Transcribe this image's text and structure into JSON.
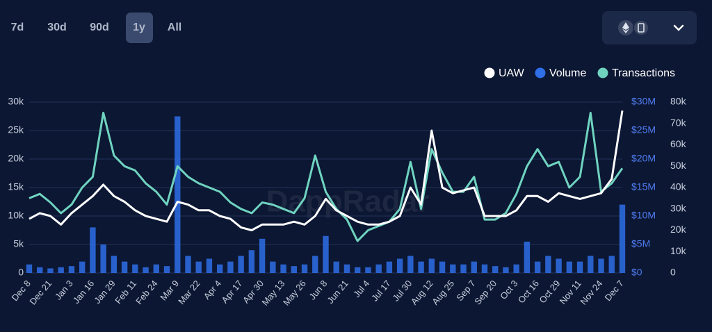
{
  "tabs": [
    "7d",
    "30d",
    "90d",
    "1y",
    "All"
  ],
  "active_tab": 3,
  "chart_data": {
    "type": "line",
    "watermark": "DappRadar",
    "legend": "top-right",
    "categories": [
      "Dec 8",
      null,
      "Dec 21",
      null,
      "Jan 3",
      null,
      "Jan 16",
      null,
      "Jan 29",
      null,
      "Feb 11",
      null,
      "Feb 24",
      null,
      "Mar 9",
      null,
      "Mar 22",
      null,
      "Apr 4",
      null,
      "Apr 17",
      null,
      "Apr 30",
      null,
      "May 13",
      null,
      "May 26",
      null,
      "Jun 8",
      null,
      "Jun 21",
      null,
      "Jul 4",
      null,
      "Jul 17",
      null,
      "Jul 30",
      null,
      "Aug 12",
      null,
      "Aug 25",
      null,
      "Sep 7",
      null,
      "Sep 20",
      null,
      "Oct 3",
      null,
      "Oct 16",
      null,
      "Oct 29",
      null,
      "Nov 11",
      null,
      "Nov 24",
      null,
      "Dec 7"
    ],
    "series": [
      {
        "name": "UAW",
        "color": "#ffffff",
        "axis": "y",
        "type": "line",
        "values": [
          9500,
          10500,
          10000,
          8500,
          10500,
          12000,
          13500,
          15500,
          13500,
          12500,
          11000,
          10000,
          9500,
          9000,
          12500,
          12000,
          11000,
          11000,
          10000,
          9500,
          8000,
          7500,
          8500,
          8500,
          8500,
          9000,
          8500,
          10000,
          13000,
          11000,
          10000,
          9000,
          8500,
          8500,
          9000,
          10000,
          15000,
          12000,
          25000,
          15000,
          14000,
          14500,
          15000,
          10000,
          10000,
          10000,
          11000,
          13500,
          13500,
          12500,
          14000,
          13500,
          13000,
          13500,
          14000,
          16500,
          28500
        ]
      },
      {
        "name": "Volume",
        "color": "#2f6fe8",
        "axis": "y2",
        "type": "bar",
        "values": [
          1500000,
          1000000,
          800000,
          1000000,
          1200000,
          2000000,
          8000000,
          5000000,
          3000000,
          2000000,
          1500000,
          1000000,
          1500000,
          1200000,
          27500000,
          3000000,
          2000000,
          2500000,
          1500000,
          2000000,
          3000000,
          4000000,
          6000000,
          2000000,
          1500000,
          1200000,
          1500000,
          3000000,
          6500000,
          2000000,
          1500000,
          1000000,
          1000000,
          1500000,
          2000000,
          2500000,
          3000000,
          2000000,
          2500000,
          2000000,
          1500000,
          1500000,
          2000000,
          1500000,
          1200000,
          1000000,
          1500000,
          5500000,
          2000000,
          3000000,
          2500000,
          2000000,
          2000000,
          3000000,
          2500000,
          3000000,
          12000000
        ]
      },
      {
        "name": "Transactions",
        "color": "#6fd3c0",
        "axis": "y3",
        "type": "line",
        "values": [
          35000,
          37000,
          33000,
          28000,
          32000,
          40000,
          45000,
          75000,
          55000,
          50000,
          48000,
          42000,
          38000,
          32000,
          50000,
          45000,
          42000,
          40000,
          38000,
          33000,
          30000,
          28000,
          33000,
          32000,
          30000,
          28000,
          35000,
          55000,
          38000,
          30000,
          25000,
          15000,
          20000,
          22000,
          24000,
          30000,
          52000,
          30000,
          58000,
          47000,
          38000,
          38000,
          45000,
          25000,
          25000,
          28000,
          37000,
          50000,
          58000,
          50000,
          52000,
          40000,
          45000,
          75000,
          38000,
          42000,
          49000
        ]
      }
    ],
    "ylim": [
      0,
      30000
    ],
    "yticks": [
      0,
      {
        "value": 5000,
        "label": "5k"
      },
      {
        "value": 10000,
        "label": "10k"
      },
      {
        "value": 15000,
        "label": "15k"
      },
      {
        "value": 20000,
        "label": "20k"
      },
      {
        "value": 25000,
        "label": "25k"
      },
      {
        "value": 30000,
        "label": "30k"
      }
    ],
    "y2lim": [
      0,
      30000000
    ],
    "y2ticks": [
      {
        "value": 0,
        "label": "$0"
      },
      {
        "value": 5000000,
        "label": "$5M"
      },
      {
        "value": 10000000,
        "label": "$10M"
      },
      {
        "value": 15000000,
        "label": "$15M"
      },
      {
        "value": 20000000,
        "label": "$20M"
      },
      {
        "value": 25000000,
        "label": "$25M"
      },
      {
        "value": 30000000,
        "label": "$30M"
      }
    ],
    "y3lim": [
      0,
      80000
    ],
    "y3ticks": [
      0,
      {
        "value": 10000,
        "label": "10k"
      },
      {
        "value": 20000,
        "label": "20k"
      },
      {
        "value": 30000,
        "label": "30k"
      },
      {
        "value": 40000,
        "label": "40k"
      },
      {
        "value": 50000,
        "label": "50k"
      },
      {
        "value": 60000,
        "label": "60k"
      },
      {
        "value": 70000,
        "label": "70k"
      },
      {
        "value": 80000,
        "label": "80k"
      }
    ],
    "grid": true
  }
}
